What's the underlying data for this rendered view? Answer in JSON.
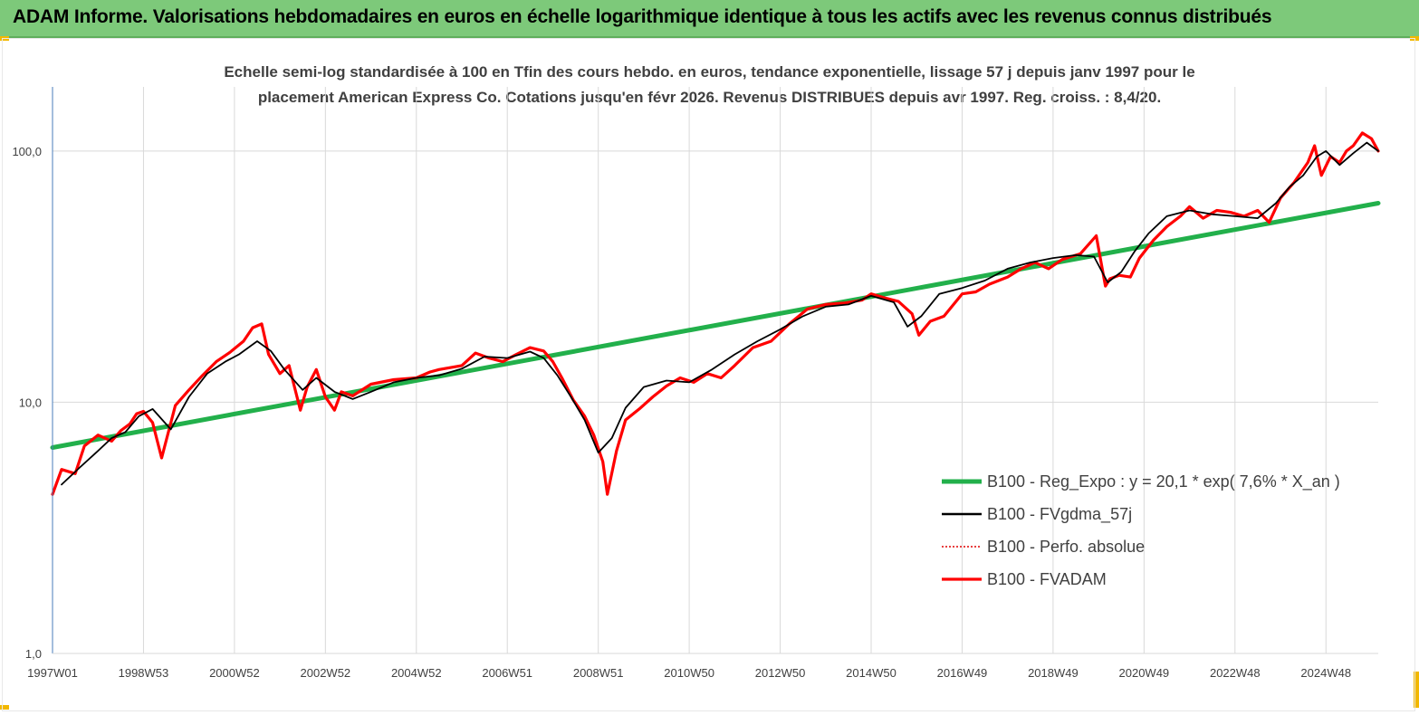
{
  "banner": {
    "title": "ADAM Informe. Valorisations hebdomadaires en euros en échelle logarithmique identique à tous les actifs avec les revenus connus distribués"
  },
  "colors": {
    "banner": "#7dc97a",
    "accent_corner": "#f2b800",
    "trend": "#22b04b",
    "smooth": "#000000",
    "perfo": "#e00000",
    "fvadam": "#ff0000",
    "grid": "#d9d9d9",
    "axis": "#4a7ebb"
  },
  "chart_data": {
    "type": "line",
    "title_lines": [
      "Echelle semi-log standardisée à 100 en Tfin des cours hebdo. en euros, tendance exponentielle, lissage 57 j depuis janv 1997 pour le",
      "placement American Express Co. Cotations jusqu'en févr 2026. Revenus DISTRIBUES depuis avr 1997. Reg. croiss. : 8,4/20."
    ],
    "y_scale": "log",
    "ylim": [
      1,
      180
    ],
    "xlim": [
      1997.0,
      2026.15
    ],
    "y_ticks": [
      {
        "value": 1,
        "label": "1,0"
      },
      {
        "value": 10,
        "label": "10,0"
      },
      {
        "value": 100,
        "label": "100,0"
      }
    ],
    "x_ticks": [
      {
        "value": 1997.0,
        "label": "1997W01"
      },
      {
        "value": 1999.0,
        "label": "1998W53"
      },
      {
        "value": 2001.0,
        "label": "2000W52"
      },
      {
        "value": 2003.0,
        "label": "2002W52"
      },
      {
        "value": 2005.0,
        "label": "2004W52"
      },
      {
        "value": 2007.0,
        "label": "2006W51"
      },
      {
        "value": 2009.0,
        "label": "2008W51"
      },
      {
        "value": 2011.0,
        "label": "2010W50"
      },
      {
        "value": 2013.0,
        "label": "2012W50"
      },
      {
        "value": 2015.0,
        "label": "2014W50"
      },
      {
        "value": 2017.0,
        "label": "2016W49"
      },
      {
        "value": 2019.0,
        "label": "2018W49"
      },
      {
        "value": 2021.0,
        "label": "2020W49"
      },
      {
        "value": 2023.0,
        "label": "2022W48"
      },
      {
        "value": 2025.0,
        "label": "2024W48"
      }
    ],
    "legend_position": "right",
    "series": [
      {
        "name": "B100 - Reg_Expo : y = 20,1 * exp( 7,6% *  X_an )",
        "style": "trend",
        "x": [
          1997.0,
          2026.15
        ],
        "y": [
          6.6,
          62
        ]
      },
      {
        "name": "B100 - FVgdma_57j",
        "style": "smooth",
        "x": [
          1997.2,
          1997.6,
          1998.0,
          1998.3,
          1998.6,
          1998.9,
          1999.2,
          1999.6,
          2000.0,
          2000.4,
          2000.8,
          2001.1,
          2001.5,
          2001.8,
          2002.1,
          2002.5,
          2002.8,
          2003.2,
          2003.6,
          2004.0,
          2004.5,
          2005.0,
          2005.5,
          2006.0,
          2006.5,
          2007.0,
          2007.5,
          2007.8,
          2008.1,
          2008.4,
          2008.7,
          2009.0,
          2009.3,
          2009.6,
          2010.0,
          2010.5,
          2011.0,
          2011.5,
          2012.0,
          2012.5,
          2013.0,
          2013.5,
          2014.0,
          2014.5,
          2015.0,
          2015.5,
          2015.8,
          2016.1,
          2016.5,
          2017.0,
          2017.5,
          2018.0,
          2018.5,
          2019.0,
          2019.5,
          2019.9,
          2020.2,
          2020.5,
          2020.8,
          2021.1,
          2021.5,
          2022.0,
          2022.5,
          2023.0,
          2023.5,
          2023.9,
          2024.2,
          2024.5,
          2024.8,
          2025.0,
          2025.3,
          2025.6,
          2025.9,
          2026.15
        ],
        "y": [
          4.7,
          5.5,
          6.4,
          7.2,
          7.6,
          8.8,
          9.4,
          7.8,
          10.5,
          13.0,
          14.5,
          15.5,
          17.5,
          16.0,
          13.5,
          11.2,
          12.5,
          11.0,
          10.3,
          11.0,
          12.0,
          12.5,
          12.8,
          13.6,
          15.2,
          15.0,
          15.9,
          15.0,
          12.8,
          10.5,
          8.5,
          6.3,
          7.2,
          9.5,
          11.5,
          12.2,
          12.0,
          13.5,
          15.5,
          17.5,
          19.5,
          22.0,
          24.0,
          24.5,
          26.5,
          25.0,
          20.0,
          22.0,
          27.0,
          28.5,
          30.5,
          34.0,
          36.0,
          37.5,
          38.5,
          38.0,
          30.0,
          33.0,
          40.0,
          47.0,
          55.0,
          58.0,
          56.0,
          55.0,
          54.0,
          62.0,
          72.0,
          80.0,
          95.0,
          100.0,
          88.0,
          98.0,
          108.0,
          100.0
        ]
      },
      {
        "name": "B100 - Perfo. absolue",
        "style": "perfo",
        "x": [],
        "y": []
      },
      {
        "name": "B100 - FVADAM",
        "style": "fvadam",
        "x": [
          1997.0,
          1997.2,
          1997.5,
          1997.7,
          1998.0,
          1998.3,
          1998.5,
          1998.7,
          1998.85,
          1999.0,
          1999.2,
          1999.4,
          1999.7,
          2000.0,
          2000.3,
          2000.6,
          2000.9,
          2001.2,
          2001.4,
          2001.6,
          2001.75,
          2002.0,
          2002.2,
          2002.45,
          2002.6,
          2002.8,
          2003.0,
          2003.2,
          2003.35,
          2003.6,
          2004.0,
          2004.5,
          2005.0,
          2005.3,
          2005.5,
          2006.0,
          2006.3,
          2006.6,
          2006.9,
          2007.2,
          2007.5,
          2007.8,
          2008.0,
          2008.2,
          2008.45,
          2008.7,
          2008.9,
          2009.1,
          2009.2,
          2009.4,
          2009.6,
          2009.9,
          2010.2,
          2010.5,
          2010.8,
          2011.1,
          2011.4,
          2011.7,
          2012.0,
          2012.4,
          2012.8,
          2013.2,
          2013.6,
          2014.0,
          2014.4,
          2014.8,
          2015.0,
          2015.3,
          2015.6,
          2015.9,
          2016.05,
          2016.3,
          2016.6,
          2017.0,
          2017.3,
          2017.6,
          2018.0,
          2018.3,
          2018.6,
          2018.9,
          2019.2,
          2019.6,
          2019.95,
          2020.15,
          2020.25,
          2020.45,
          2020.7,
          2020.9,
          2021.2,
          2021.5,
          2021.8,
          2022.0,
          2022.3,
          2022.6,
          2022.9,
          2023.2,
          2023.5,
          2023.75,
          2024.0,
          2024.3,
          2024.6,
          2024.75,
          2024.9,
          2025.1,
          2025.3,
          2025.45,
          2025.6,
          2025.8,
          2026.0,
          2026.15
        ],
        "y": [
          4.3,
          5.4,
          5.2,
          6.7,
          7.4,
          7.0,
          7.7,
          8.2,
          9.0,
          9.2,
          8.3,
          6.0,
          9.7,
          11.2,
          12.8,
          14.5,
          15.8,
          17.5,
          19.8,
          20.5,
          15.5,
          13.0,
          14.0,
          9.3,
          11.5,
          13.5,
          10.5,
          9.3,
          11.0,
          10.6,
          11.8,
          12.3,
          12.5,
          13.2,
          13.5,
          14.0,
          15.7,
          15.0,
          14.5,
          15.5,
          16.5,
          16.0,
          14.5,
          12.5,
          10.2,
          8.8,
          7.4,
          5.8,
          4.3,
          6.4,
          8.5,
          9.4,
          10.5,
          11.6,
          12.5,
          12.0,
          13.0,
          12.5,
          14.0,
          16.5,
          17.5,
          20.5,
          23.5,
          24.5,
          24.8,
          25.5,
          27.0,
          26.0,
          25.2,
          22.5,
          18.5,
          21.0,
          22.0,
          27.0,
          27.5,
          29.5,
          31.5,
          34.0,
          36.0,
          34.0,
          37.0,
          39.0,
          46.0,
          29.0,
          31.0,
          32.0,
          31.5,
          37.5,
          44.0,
          50.0,
          55.0,
          60.0,
          54.0,
          58.0,
          57.0,
          55.0,
          58.0,
          52.0,
          65.0,
          75.0,
          90.0,
          105.0,
          80.0,
          95.0,
          90.0,
          100.0,
          105.0,
          118.0,
          112.0,
          100.0
        ]
      }
    ]
  }
}
